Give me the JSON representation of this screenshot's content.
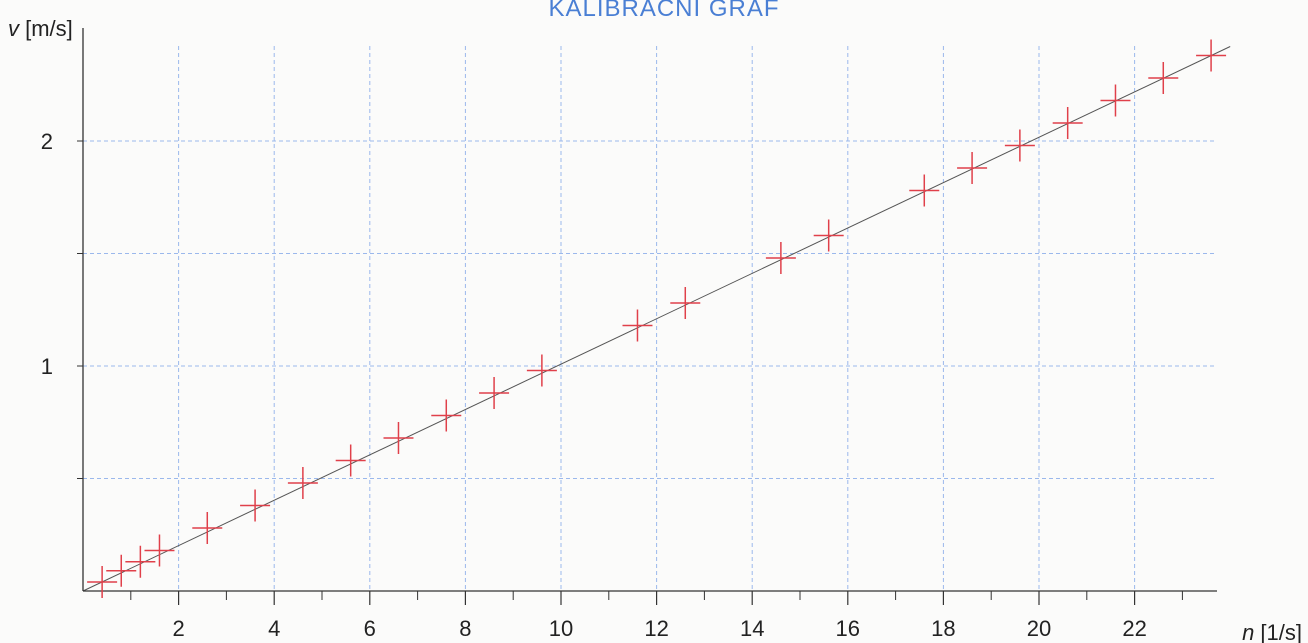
{
  "chart_data": {
    "type": "scatter",
    "title": "KALIBRAČNÍ GRAF",
    "xlabel": {
      "var": "n",
      "unit": " [1/s]"
    },
    "ylabel": {
      "var": "v",
      "unit": " [m/s]"
    },
    "xlim": [
      0,
      24
    ],
    "ylim": [
      0,
      2.45
    ],
    "xticks_labeled": [
      2,
      4,
      6,
      8,
      10,
      12,
      14,
      16,
      18,
      20,
      22
    ],
    "xticks_minor": [
      1,
      3,
      5,
      7,
      9,
      11,
      13,
      15,
      17,
      19,
      21,
      23
    ],
    "yticks_labeled": [
      1,
      2
    ],
    "ygrid": [
      0.5,
      1,
      1.5,
      2
    ],
    "grid": true,
    "points": [
      [
        0.4,
        0.04
      ],
      [
        0.8,
        0.09
      ],
      [
        1.2,
        0.13
      ],
      [
        1.6,
        0.18
      ],
      [
        2.6,
        0.28
      ],
      [
        3.6,
        0.38
      ],
      [
        4.6,
        0.48
      ],
      [
        5.6,
        0.58
      ],
      [
        6.6,
        0.68
      ],
      [
        7.6,
        0.78
      ],
      [
        8.6,
        0.88
      ],
      [
        9.6,
        0.98
      ],
      [
        11.6,
        1.18
      ],
      [
        12.6,
        1.28
      ],
      [
        14.6,
        1.48
      ],
      [
        15.6,
        1.58
      ],
      [
        17.6,
        1.78
      ],
      [
        18.6,
        1.88
      ],
      [
        19.6,
        1.98
      ],
      [
        20.6,
        2.08
      ],
      [
        21.6,
        2.18
      ],
      [
        22.6,
        2.28
      ],
      [
        23.6,
        2.38
      ]
    ],
    "fit_line": {
      "x": [
        0,
        24
      ],
      "y": [
        0,
        2.42
      ]
    },
    "colors": {
      "points": "#e0404a",
      "grid": "#9bb8ec",
      "fit": "#555555",
      "axes": "#333333",
      "title": "#4a7fd4"
    }
  }
}
